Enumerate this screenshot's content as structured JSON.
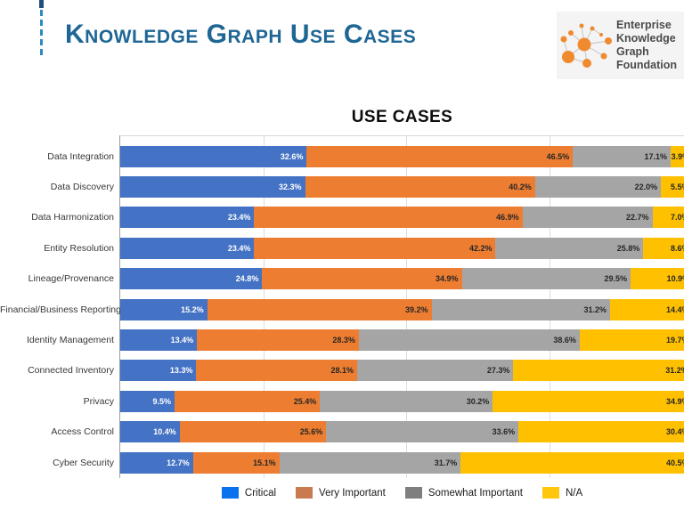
{
  "header": {
    "title": "Knowledge Graph Use Cases"
  },
  "logo": {
    "lines": [
      "Enterprise",
      "Knowledge",
      "Graph",
      "Foundation"
    ],
    "icon_color": "#F08A2E",
    "edge_color": "#cccccc",
    "text_color": "#4b4b4b"
  },
  "chart_data": {
    "type": "bar",
    "orientation": "horizontal",
    "stacked": true,
    "title": "USE CASES",
    "value_suffix": "%",
    "x_range_percent": [
      0,
      100
    ],
    "gridlines_percent": [
      25,
      50,
      75,
      100
    ],
    "grid_on": true,
    "legend_position": "bottom",
    "note": "bars sum to ~100% per row; right edge of plot (100%) is clipped by the slide edge",
    "categories": [
      "Data Integration",
      "Data Discovery",
      "Data Harmonization",
      "Entity Resolution",
      "Lineage/Provenance",
      "Financial/Business Reporting",
      "Identity Management",
      "Connected Inventory",
      "Privacy",
      "Access Control",
      "Cyber Security"
    ],
    "series": [
      {
        "name": "Critical",
        "color": "#4472C4",
        "legend_color": "#0B72EE",
        "label_color": "#ffffff",
        "values": [
          32.6,
          32.3,
          23.4,
          23.4,
          24.8,
          15.2,
          13.4,
          13.3,
          9.5,
          10.4,
          12.7
        ]
      },
      {
        "name": "Very Important",
        "color": "#ED7D31",
        "legend_color": "#C97B4F",
        "label_color": "#262626",
        "values": [
          46.5,
          40.2,
          46.9,
          42.2,
          34.9,
          39.2,
          28.3,
          28.1,
          25.4,
          25.6,
          15.1
        ]
      },
      {
        "name": "Somewhat Important",
        "color": "#A5A5A5",
        "legend_color": "#7F7F7F",
        "label_color": "#262626",
        "values": [
          17.1,
          22.0,
          22.7,
          25.8,
          29.5,
          31.2,
          38.6,
          27.3,
          30.2,
          33.6,
          31.7
        ]
      },
      {
        "name": "N/A",
        "color": "#FFC000",
        "legend_color": "#FFC60B",
        "label_color": "#262626",
        "values": [
          3.9,
          5.5,
          7.0,
          8.6,
          10.9,
          14.4,
          19.7,
          31.2,
          34.9,
          30.4,
          40.5
        ]
      }
    ]
  }
}
